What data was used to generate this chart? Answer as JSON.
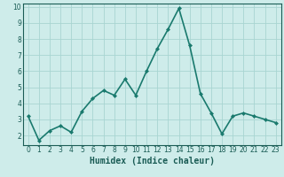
{
  "x": [
    0,
    1,
    2,
    3,
    4,
    5,
    6,
    7,
    8,
    9,
    10,
    11,
    12,
    13,
    14,
    15,
    16,
    17,
    18,
    19,
    20,
    21,
    22,
    23
  ],
  "y": [
    3.2,
    1.7,
    2.3,
    2.6,
    2.2,
    3.5,
    4.3,
    4.8,
    4.5,
    5.5,
    4.5,
    6.0,
    7.4,
    8.6,
    9.9,
    7.6,
    4.6,
    3.4,
    2.1,
    3.2,
    3.4,
    3.2,
    3.0,
    2.8
  ],
  "line_color": "#1a7a6e",
  "marker": "D",
  "marker_size": 2.0,
  "bg_color": "#ceecea",
  "grid_color": "#a8d5d2",
  "xlabel": "Humidex (Indice chaleur)",
  "xlim": [
    -0.5,
    23.5
  ],
  "ylim": [
    1.4,
    10.2
  ],
  "yticks": [
    2,
    3,
    4,
    5,
    6,
    7,
    8,
    9,
    10
  ],
  "xticks": [
    0,
    1,
    2,
    3,
    4,
    5,
    6,
    7,
    8,
    9,
    10,
    11,
    12,
    13,
    14,
    15,
    16,
    17,
    18,
    19,
    20,
    21,
    22,
    23
  ],
  "tick_color": "#1a5c55",
  "spine_color": "#1a5c55",
  "tick_fontsize": 5.5,
  "xlabel_fontsize": 7.0,
  "line_width": 1.2,
  "bottom_bar_color": "#2a6b65"
}
